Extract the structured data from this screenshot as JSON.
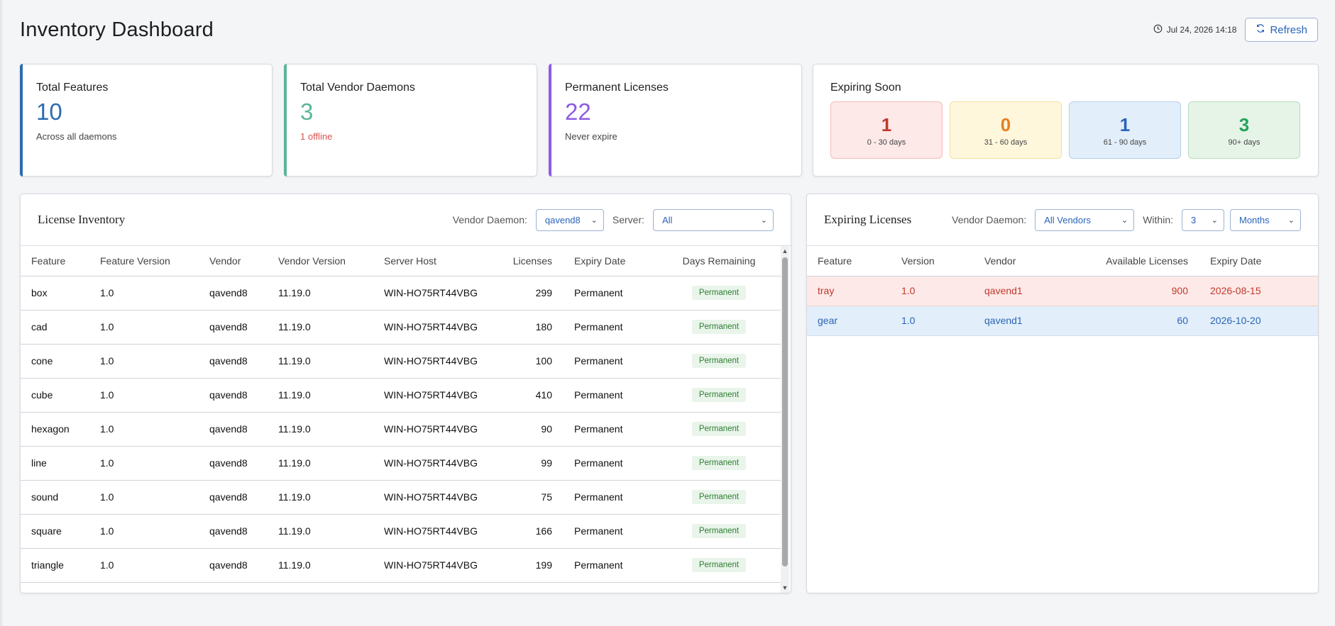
{
  "header": {
    "title": "Inventory Dashboard",
    "timestamp": "Jul 24, 2026 14:18",
    "refresh_label": "Refresh"
  },
  "stats": [
    {
      "label": "Total Features",
      "value": "10",
      "sub": "Across all daemons",
      "color": "#2b6cb0",
      "sub_color": "#444444"
    },
    {
      "label": "Total Vendor Daemons",
      "value": "3",
      "sub": "1 offline",
      "color": "#5bb59a",
      "sub_color": "#d9534f"
    },
    {
      "label": "Permanent Licenses",
      "value": "22",
      "sub": "Never expire",
      "color": "#8e5ce6",
      "sub_color": "#444444"
    }
  ],
  "expiring_soon": {
    "label": "Expiring Soon",
    "buckets": [
      {
        "count": "1",
        "range": "0 - 30 days",
        "color": "#c0392b",
        "bg": "#fde9e8",
        "border": "#f2bcb8"
      },
      {
        "count": "0",
        "range": "31 - 60 days",
        "color": "#e67e22",
        "bg": "#fff7dc",
        "border": "#f3dfa2"
      },
      {
        "count": "1",
        "range": "61 - 90 days",
        "color": "#2a64b8",
        "bg": "#e2eef9",
        "border": "#b5d0ec"
      },
      {
        "count": "3",
        "range": "90+ days",
        "color": "#27a35a",
        "bg": "#e6f4e8",
        "border": "#b5dcbc"
      }
    ]
  },
  "inventory": {
    "title": "License Inventory",
    "vendor_label": "Vendor Daemon:",
    "vendor_value": "qavend8",
    "server_label": "Server:",
    "server_value": "All",
    "columns": [
      "Feature",
      "Feature Version",
      "Vendor",
      "Vendor Version",
      "Server Host",
      "Licenses",
      "Expiry Date",
      "Days Remaining"
    ],
    "rows": [
      [
        "box",
        "1.0",
        "qavend8",
        "11.19.0",
        "WIN-HO75RT44VBG",
        "299",
        "Permanent",
        "Permanent"
      ],
      [
        "cad",
        "1.0",
        "qavend8",
        "11.19.0",
        "WIN-HO75RT44VBG",
        "180",
        "Permanent",
        "Permanent"
      ],
      [
        "cone",
        "1.0",
        "qavend8",
        "11.19.0",
        "WIN-HO75RT44VBG",
        "100",
        "Permanent",
        "Permanent"
      ],
      [
        "cube",
        "1.0",
        "qavend8",
        "11.19.0",
        "WIN-HO75RT44VBG",
        "410",
        "Permanent",
        "Permanent"
      ],
      [
        "hexagon",
        "1.0",
        "qavend8",
        "11.19.0",
        "WIN-HO75RT44VBG",
        "90",
        "Permanent",
        "Permanent"
      ],
      [
        "line",
        "1.0",
        "qavend8",
        "11.19.0",
        "WIN-HO75RT44VBG",
        "99",
        "Permanent",
        "Permanent"
      ],
      [
        "sound",
        "1.0",
        "qavend8",
        "11.19.0",
        "WIN-HO75RT44VBG",
        "75",
        "Permanent",
        "Permanent"
      ],
      [
        "square",
        "1.0",
        "qavend8",
        "11.19.0",
        "WIN-HO75RT44VBG",
        "166",
        "Permanent",
        "Permanent"
      ],
      [
        "triangle",
        "1.0",
        "qavend8",
        "11.19.0",
        "WIN-HO75RT44VBG",
        "199",
        "Permanent",
        "Permanent"
      ]
    ]
  },
  "expiring": {
    "title": "Expiring Licenses",
    "vendor_label": "Vendor Daemon:",
    "vendor_value": "All Vendors",
    "within_label": "Within:",
    "within_value": "3",
    "unit_value": "Months",
    "columns": [
      "Feature",
      "Version",
      "Vendor",
      "Available Licenses",
      "Expiry Date"
    ],
    "rows": [
      {
        "feature": "tray",
        "version": "1.0",
        "vendor": "qavend1",
        "available": "900",
        "expiry": "2026-08-15",
        "level": "red"
      },
      {
        "feature": "gear",
        "version": "1.0",
        "vendor": "qavend1",
        "available": "60",
        "expiry": "2026-10-20",
        "level": "blue"
      }
    ]
  }
}
